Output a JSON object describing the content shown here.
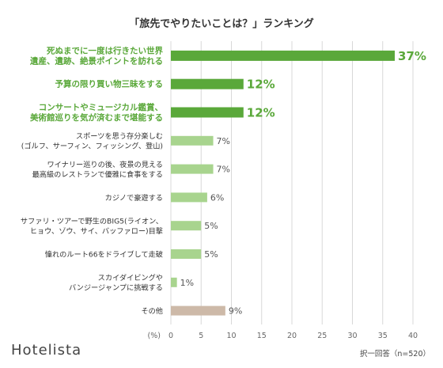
{
  "brand": "Hotelista",
  "note": "択一回答（n=520）",
  "chart_data": {
    "type": "bar",
    "orientation": "horizontal",
    "title": "「旅先でやりたいことは？」ランキング",
    "xlabel": "(%)",
    "xlim": [
      0,
      40
    ],
    "xticks": [
      0,
      5,
      10,
      15,
      20,
      25,
      30,
      35,
      40
    ],
    "grid": true,
    "categories": [
      [
        "死ぬまでに一度は行きたい世界",
        "遺産、遺跡、絶景ポイントを訪れる"
      ],
      [
        "予算の限り買い物三昧をする"
      ],
      [
        "コンサートやミュージカル鑑賞、",
        "美術館巡りを気が済むまで堪能する"
      ],
      [
        "スポーツを思う存分楽しむ",
        "(ゴルフ、サーフィン、フィッシング、登山)"
      ],
      [
        "ワイナリー巡りの後、夜景の見える",
        "最高級のレストランで優雅に食事をする"
      ],
      [
        "カジノで豪遊する"
      ],
      [
        "サファリ・ツアーで野生のBIG5(ライオン、",
        "ヒョウ、ゾウ、サイ、バッファロー)目撃"
      ],
      [
        "憧れのルート66をドライブして走破"
      ],
      [
        "スカイダイビングや",
        "バンジージャンプに挑戦する"
      ],
      [
        "その他"
      ]
    ],
    "values": [
      37,
      12,
      12,
      7,
      7,
      6,
      5,
      5,
      1,
      9
    ],
    "value_labels": [
      "37%",
      "12%",
      "12%",
      "7%",
      "7%",
      "6%",
      "5%",
      "5%",
      "1%",
      "9%"
    ],
    "highlight": [
      true,
      true,
      true,
      false,
      false,
      false,
      false,
      false,
      false,
      false
    ],
    "colors": {
      "highlight": "#5aa83a",
      "normal": "#a8d48e",
      "other": "#cdb9a8",
      "grid": "#d8d8d8"
    }
  }
}
